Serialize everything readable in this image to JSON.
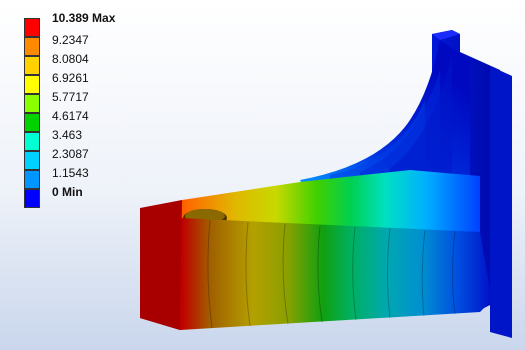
{
  "legend": {
    "labels": [
      "10.389 Max",
      "9.2347",
      "8.0804",
      "6.9261",
      "5.7717",
      "4.6174",
      "3.463",
      "2.3087",
      "1.1543",
      "0 Min"
    ],
    "colors": [
      "#ff0000",
      "#ff8a00",
      "#ffd200",
      "#ffff00",
      "#8aff00",
      "#00d200",
      "#00ffd2",
      "#00d2ff",
      "#0096ff",
      "#0000ff"
    ]
  }
}
